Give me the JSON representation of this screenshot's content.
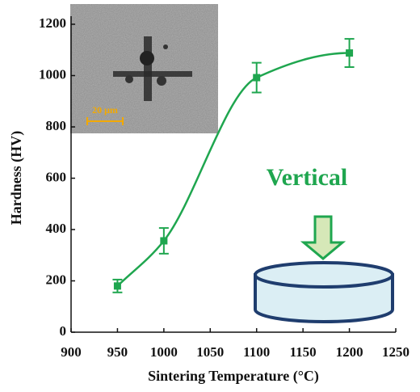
{
  "chart_data": {
    "type": "scatter-line",
    "x_label": "Sintering Temperature (°C)",
    "y_label": "Hardness (HV)",
    "x": [
      950,
      1000,
      1100,
      1200
    ],
    "series": [
      {
        "color": "#1fa64f",
        "values": [
          180,
          356,
          992,
          1088
        ],
        "errors": [
          25,
          50,
          58,
          55
        ]
      }
    ],
    "xlim": [
      900,
      1250
    ],
    "xticks": [
      900,
      950,
      1000,
      1050,
      1100,
      1150,
      1200,
      1250
    ],
    "ylim": [
      0,
      1200
    ],
    "yticks": [
      0,
      200,
      400,
      600,
      800,
      1000,
      1200
    ],
    "annotations": {
      "direction": "Vertical",
      "scale_bar": "20 μm"
    }
  }
}
